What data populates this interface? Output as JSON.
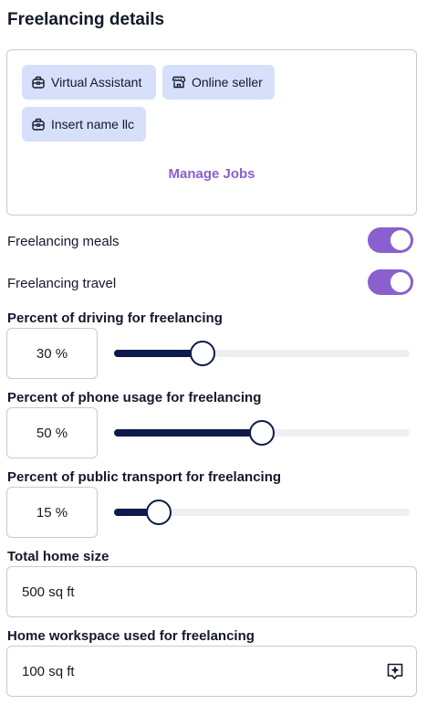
{
  "section_title": "Freelancing details",
  "jobs": {
    "chips": [
      {
        "label": "Virtual Assistant",
        "icon": "briefcase-icon"
      },
      {
        "label": "Online seller",
        "icon": "storefront-icon"
      },
      {
        "label": "Insert name llc",
        "icon": "briefcase-icon"
      }
    ],
    "manage_label": "Manage Jobs"
  },
  "toggles": [
    {
      "label": "Freelancing meals",
      "on": true
    },
    {
      "label": "Freelancing travel",
      "on": true
    }
  ],
  "percentages": [
    {
      "label": "Percent of driving for freelancing",
      "value_text": "30 %",
      "value": 30
    },
    {
      "label": "Percent of phone usage for freelancing",
      "value_text": "50 %",
      "value": 50
    },
    {
      "label": "Percent of public transport for freelancing",
      "value_text": "15 %",
      "value": 15
    }
  ],
  "home_size": {
    "label": "Total home size",
    "value": "500 sq ft"
  },
  "workspace": {
    "label": "Home workspace used for freelancing",
    "value": "100 sq ft",
    "icon": "sparkle-message-icon"
  },
  "colors": {
    "accent": "#8a5fce",
    "chip_bg": "#d6e0fb",
    "slider_fill": "#0f1a4a",
    "track": "#efeff1"
  }
}
